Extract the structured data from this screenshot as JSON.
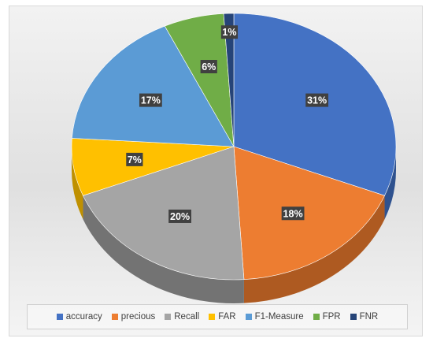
{
  "chart_data": {
    "type": "pie",
    "categories": [
      "accuracy",
      "precious",
      "Recall",
      "FAR",
      "F1-Measure",
      "FPR",
      "FNR"
    ],
    "values": [
      31,
      18,
      20,
      7,
      17,
      6,
      1
    ],
    "value_labels": [
      "31%",
      "18%",
      "20%",
      "7%",
      "17%",
      "6%",
      "1%"
    ],
    "colors": [
      "#4472c4",
      "#ed7d31",
      "#a5a5a5",
      "#ffc000",
      "#5b9bd5",
      "#70ad47",
      "#264478"
    ],
    "side_colors": [
      "#2f528f",
      "#ae5a21",
      "#737373",
      "#bf9000",
      "#41719c",
      "#507e32",
      "#1a2f55"
    ],
    "legend_position": "bottom",
    "style": "3d"
  }
}
